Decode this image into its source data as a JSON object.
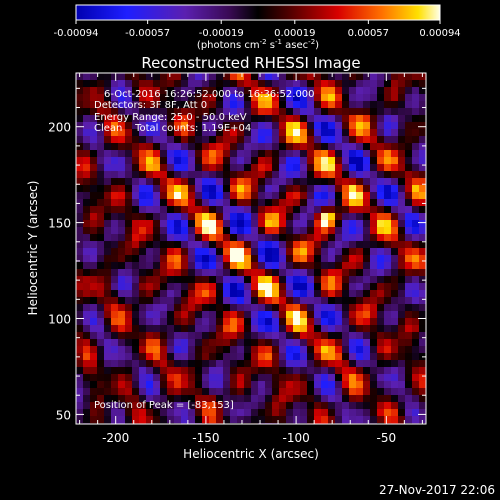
{
  "colorbar": {
    "ticks": [
      "-0.00094",
      "-0.00057",
      "-0.00019",
      "0.00019",
      "0.00057",
      "0.00094"
    ],
    "range": [
      -0.00094,
      0.00094
    ],
    "units_prefix": "(photons cm",
    "units_sup1": "-2",
    "units_mid": " s",
    "units_sup2": "-1",
    "units_mid2": " asec",
    "units_sup3": "-2",
    "units_suffix": ")"
  },
  "chart_data": {
    "type": "heatmap",
    "title": "Reconstructed RHESSI Image",
    "xlabel": "Heliocentric X (arcsec)",
    "ylabel": "Heliocentric Y (arcsec)",
    "xlim": [
      -222,
      -28
    ],
    "ylim": [
      45,
      228
    ],
    "xticks": [
      -200,
      -150,
      -100,
      -50
    ],
    "yticks": [
      50,
      100,
      150,
      200
    ],
    "peak": [
      -83,
      153
    ],
    "annotations": {
      "time_range": "6-Oct-2016 16:26:52.000 to 16:36:52.000",
      "detectors": "Detectors: 3F 8F, Att 0",
      "energy": "Energy Range: 25.0 - 50.0 keV",
      "clean": "Clean    Total counts: 1.19E+04",
      "peak_label": "Position of Peak = [-83,153]"
    }
  },
  "footer": {
    "timestamp": "27-Nov-2017 22:06"
  }
}
